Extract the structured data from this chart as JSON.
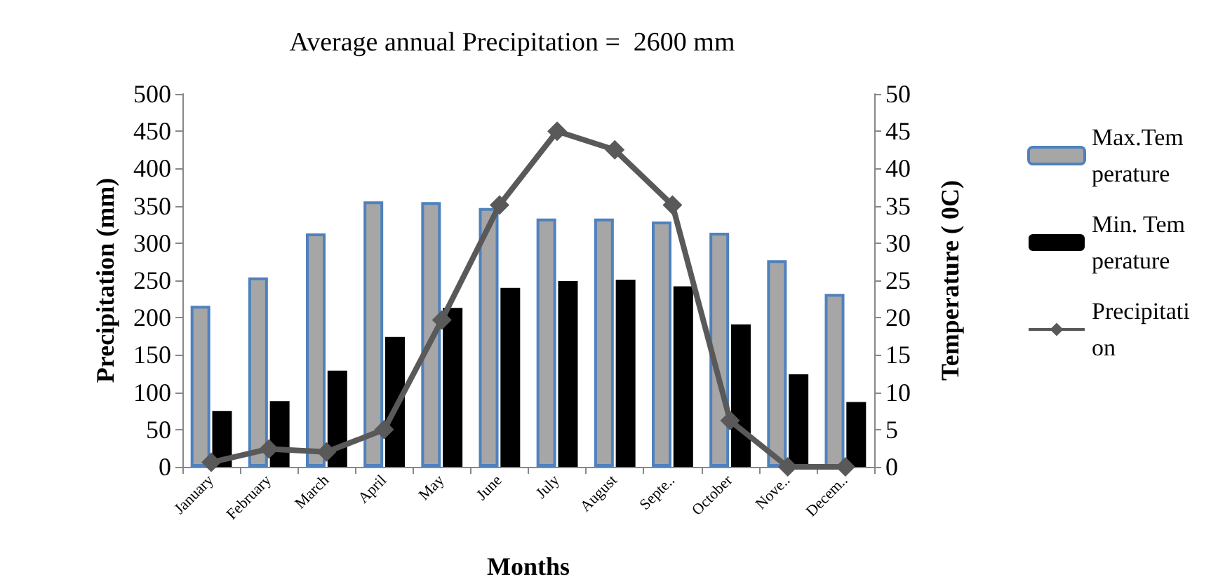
{
  "chart_data": {
    "type": "bar",
    "title": "Average annual Precipitation =  2600 mm",
    "xlabel": "Months",
    "ylabel": "Precipitation (mm)",
    "y2label": "Temperature ( 0C)",
    "categories": [
      "January",
      "February",
      "March",
      "April",
      "May",
      "June",
      "July",
      "August",
      "Septe..",
      "October",
      "Nove..",
      "Decem.."
    ],
    "series": [
      {
        "name": "Max.Temperature",
        "axis": "y2",
        "color": "#a6a6a6",
        "values": [
          21.6,
          25.4,
          31.3,
          35.6,
          35.5,
          34.7,
          33.3,
          33.3,
          32.9,
          31.4,
          27.7,
          23.2
        ]
      },
      {
        "name": "Min. Temperature",
        "axis": "y2",
        "color": "#000000",
        "values": [
          7.5,
          8.8,
          12.9,
          17.4,
          21.3,
          24.0,
          24.9,
          25.1,
          24.2,
          19.1,
          12.4,
          8.7
        ]
      },
      {
        "name": "Precipitation",
        "type": "line",
        "color": "#595959",
        "marker": "diamond",
        "values": [
          6,
          24,
          20,
          50,
          197,
          351,
          450,
          425,
          351,
          62,
          0,
          0
        ]
      }
    ],
    "ylim": [
      0,
      500
    ],
    "yticks": [
      0,
      50,
      100,
      150,
      200,
      250,
      300,
      350,
      400,
      450,
      500
    ],
    "y2lim": [
      0,
      50
    ],
    "y2ticks": [
      0,
      5,
      10,
      15,
      20,
      25,
      30,
      35,
      40,
      45,
      50
    ],
    "grid": false,
    "legend": "right"
  }
}
